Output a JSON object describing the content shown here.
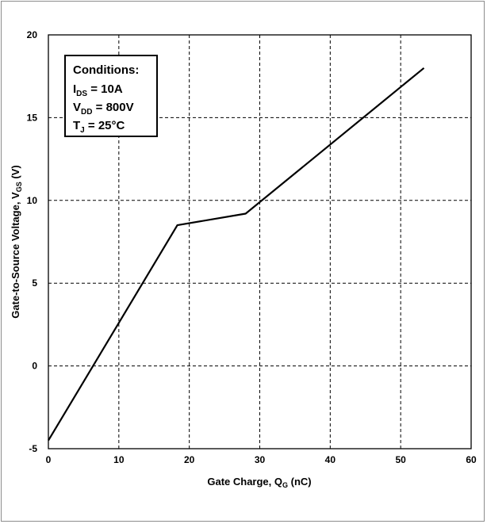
{
  "chart_data": {
    "type": "line",
    "xlabel": {
      "main": "Gate Charge, Q",
      "sub": "G",
      "unit": " (nC)"
    },
    "ylabel": {
      "main": "Gate-to-Source Voltage, V",
      "sub": "GS",
      "unit": " (V)"
    },
    "xlim": [
      0,
      60
    ],
    "ylim": [
      -5,
      20
    ],
    "xticks": [
      0,
      10,
      20,
      30,
      40,
      50,
      60
    ],
    "yticks": [
      -5,
      0,
      5,
      10,
      15,
      20
    ],
    "grid": true,
    "grid_style": "dashed",
    "series": [
      {
        "color": "#000000",
        "x": [
          0,
          18.3,
          28,
          53.3
        ],
        "y": [
          -4.5,
          8.5,
          9.2,
          18.0
        ]
      }
    ],
    "annotation": {
      "position": "top-left",
      "title": "Conditions:",
      "lines": [
        {
          "main": "I",
          "sub": "DS",
          "rest": " = 10A"
        },
        {
          "main": "V",
          "sub": "DD",
          "rest": " = 800V"
        },
        {
          "main": "T",
          "sub": "J",
          "rest": " = 25°C"
        }
      ]
    }
  }
}
